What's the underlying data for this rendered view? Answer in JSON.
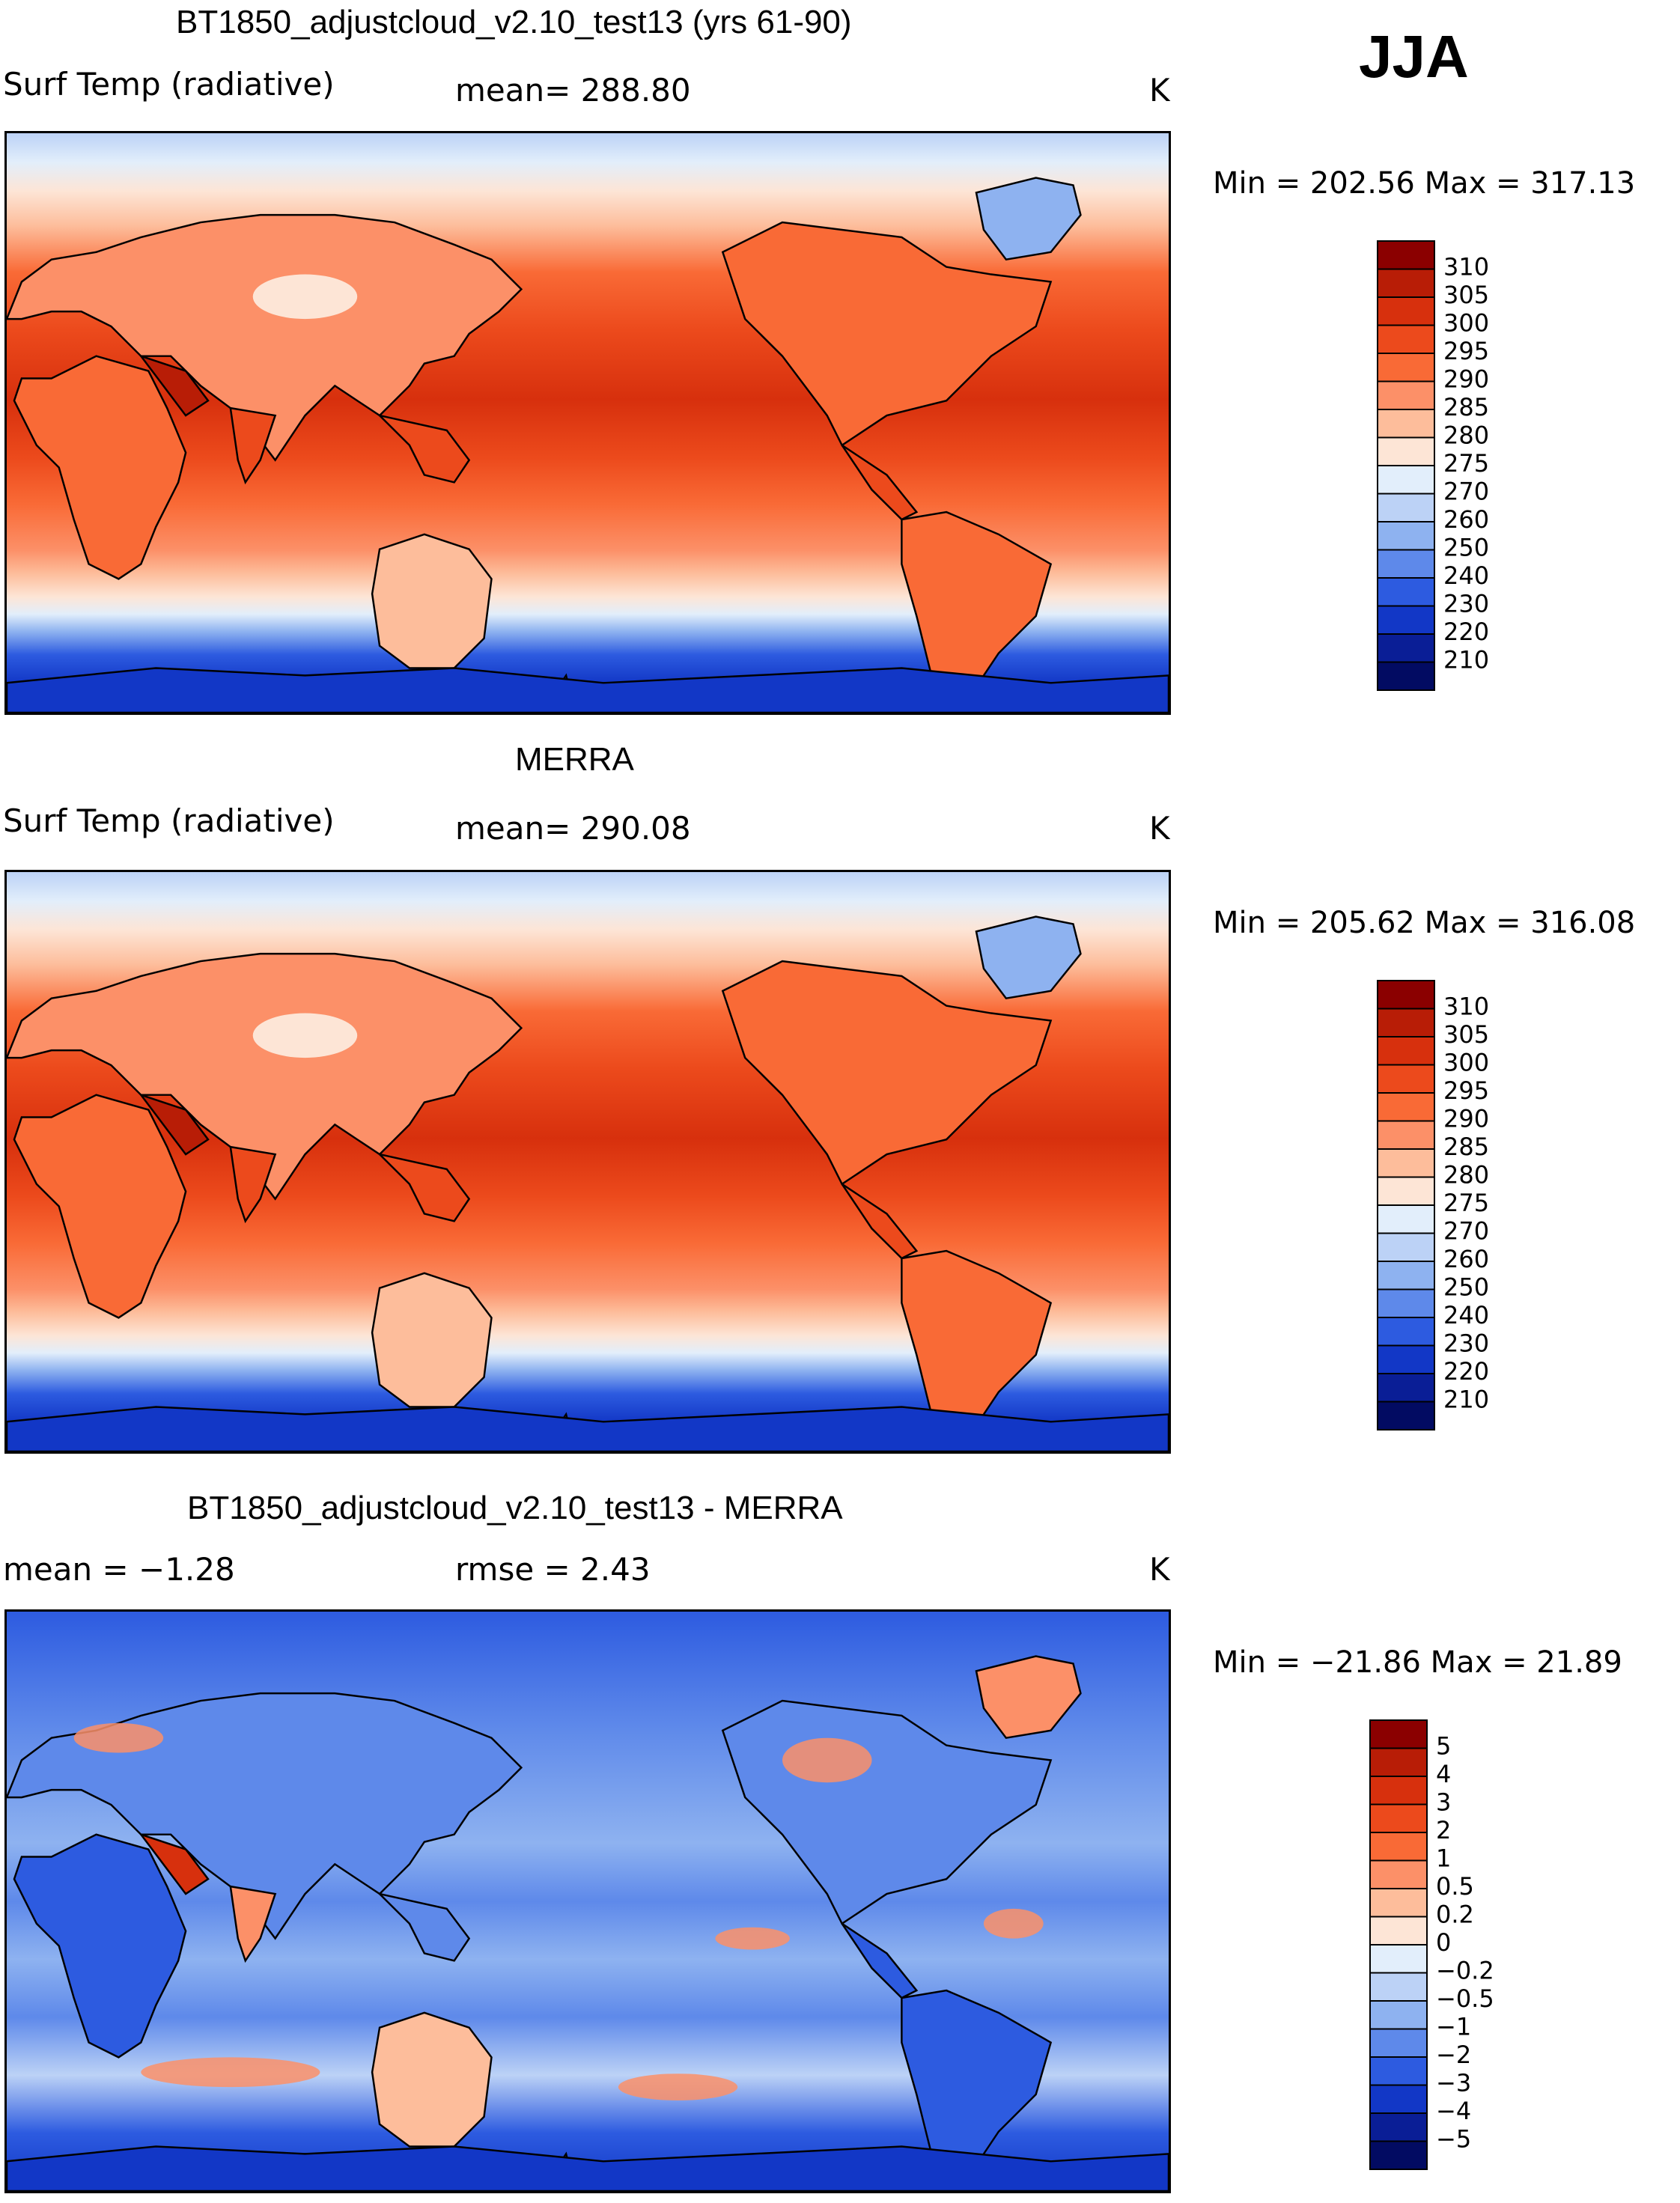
{
  "season": "JJA",
  "panels": [
    {
      "id": "model",
      "title": "BT1850_adjustcloud_v2.10_test13 (yrs 61-90)",
      "variable": "Surf Temp (radiative)",
      "stat_text": "mean= 288.80",
      "unit": "K",
      "minmax": "Min = 202.56 Max = 317.13",
      "legend_labels": [
        "310",
        "305",
        "300",
        "295",
        "290",
        "285",
        "280",
        "275",
        "270",
        "260",
        "250",
        "240",
        "230",
        "220",
        "210"
      ],
      "legend_colors": [
        "#8b0000",
        "#b81d06",
        "#d7300d",
        "#ec4a1c",
        "#f96a36",
        "#fc9068",
        "#fdbd9b",
        "#fde5d6",
        "#e2eefb",
        "#bcd2f6",
        "#8eb2f0",
        "#5e89ea",
        "#2d5be0",
        "#1237c6",
        "#0a1e96",
        "#020b62"
      ],
      "chart_data": {
        "type": "heatmap",
        "title": "BT1850_adjustcloud_v2.10_test13 (yrs 61-90)",
        "variable": "Surf Temp (radiative)",
        "units": "K",
        "mean": 288.8,
        "min": 202.56,
        "max": 317.13,
        "contour_levels": [
          210,
          220,
          230,
          240,
          250,
          260,
          270,
          275,
          280,
          285,
          290,
          295,
          300,
          305,
          310
        ]
      }
    },
    {
      "id": "obs",
      "title": "MERRA",
      "variable": "Surf Temp (radiative)",
      "stat_text": "mean= 290.08",
      "unit": "K",
      "minmax": "Min = 205.62 Max = 316.08",
      "legend_labels": [
        "310",
        "305",
        "300",
        "295",
        "290",
        "285",
        "280",
        "275",
        "270",
        "260",
        "250",
        "240",
        "230",
        "220",
        "210"
      ],
      "legend_colors": [
        "#8b0000",
        "#b81d06",
        "#d7300d",
        "#ec4a1c",
        "#f96a36",
        "#fc9068",
        "#fdbd9b",
        "#fde5d6",
        "#e2eefb",
        "#bcd2f6",
        "#8eb2f0",
        "#5e89ea",
        "#2d5be0",
        "#1237c6",
        "#0a1e96",
        "#020b62"
      ],
      "chart_data": {
        "type": "heatmap",
        "title": "MERRA",
        "variable": "Surf Temp (radiative)",
        "units": "K",
        "mean": 290.08,
        "min": 205.62,
        "max": 316.08,
        "contour_levels": [
          210,
          220,
          230,
          240,
          250,
          260,
          270,
          275,
          280,
          285,
          290,
          295,
          300,
          305,
          310
        ]
      }
    },
    {
      "id": "diff",
      "title": "BT1850_adjustcloud_v2.10_test13 - MERRA",
      "variable": "mean =   −1.28",
      "stat_text": "rmse =    2.43",
      "unit": "K",
      "minmax": "Min = −21.86 Max =   21.89",
      "legend_labels": [
        "5",
        "4",
        "3",
        "2",
        "1",
        "0.5",
        "0.2",
        "0",
        "−0.2",
        "−0.5",
        "−1",
        "−2",
        "−3",
        "−4",
        "−5"
      ],
      "legend_colors": [
        "#8b0000",
        "#b81d06",
        "#d7300d",
        "#ec4a1c",
        "#f96a36",
        "#fc9068",
        "#fdbd9b",
        "#fde5d6",
        "#e2eefb",
        "#bcd2f6",
        "#8eb2f0",
        "#5e89ea",
        "#2d5be0",
        "#1237c6",
        "#0a1e96",
        "#020b62"
      ],
      "chart_data": {
        "type": "heatmap",
        "title": "BT1850_adjustcloud_v2.10_test13 - MERRA",
        "units": "K",
        "mean": -1.28,
        "rmse": 2.43,
        "min": -21.86,
        "max": 21.89,
        "contour_levels": [
          -5,
          -4,
          -3,
          -2,
          -1,
          -0.5,
          -0.2,
          0,
          0.2,
          0.5,
          1,
          2,
          3,
          4,
          5
        ]
      }
    }
  ],
  "chart_data": [
    {
      "type": "heatmap",
      "title": "BT1850_adjustcloud_v2.10_test13 (yrs 61-90)",
      "units": "K",
      "mean": 288.8,
      "min": 202.56,
      "max": 317.13
    },
    {
      "type": "heatmap",
      "title": "MERRA",
      "units": "K",
      "mean": 290.08,
      "min": 205.62,
      "max": 316.08
    },
    {
      "type": "heatmap",
      "title": "BT1850_adjustcloud_v2.10_test13 - MERRA",
      "units": "K",
      "mean": -1.28,
      "rmse": 2.43,
      "min": -21.86,
      "max": 21.89
    }
  ]
}
